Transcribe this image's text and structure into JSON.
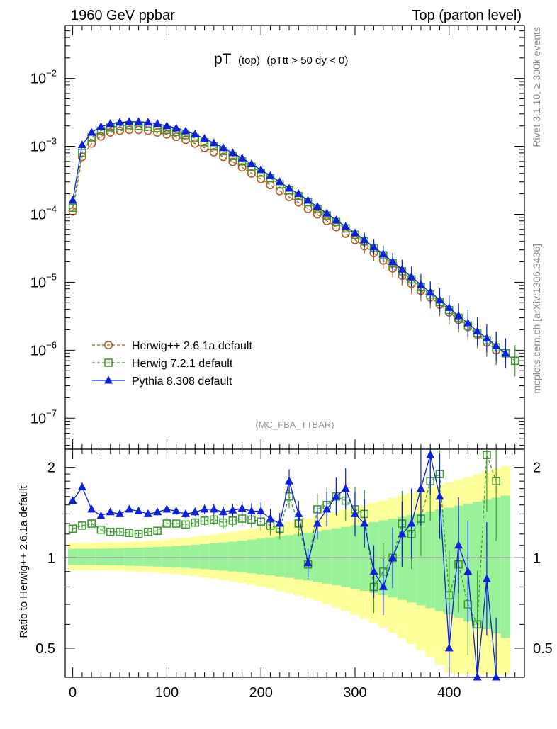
{
  "header": {
    "left": "1960 GeV ppbar",
    "right": "Top (parton level)"
  },
  "side_labels": {
    "rivet": "Rivet 3.1.10, ≥ 300k events",
    "mcplots": "mcplots.cern.ch [arXiv:1306.3436]"
  },
  "chart_data": [
    {
      "type": "line",
      "title": "pT (top) (pTtt > 50 dy < 0)",
      "title_main": "pT",
      "title_sub": "(top)",
      "title_cut": "(pTtt > 50 dy < 0)",
      "watermark": "(MC_FBA_TTBAR)",
      "yscale": "log",
      "ylim": [
        3.5e-08,
        0.06
      ],
      "xlim": [
        -8,
        480
      ],
      "ytick_labels": [
        {
          "mant": "10",
          "exp": "−2"
        },
        {
          "mant": "10",
          "exp": "−3"
        },
        {
          "mant": "10",
          "exp": "−4"
        },
        {
          "mant": "10",
          "exp": "−5"
        },
        {
          "mant": "10",
          "exp": "−6"
        },
        {
          "mant": "10",
          "exp": "−7"
        }
      ],
      "ytick_values": [
        0.01,
        0.001,
        0.0001,
        1e-05,
        1e-06,
        1e-07
      ],
      "legend": [
        {
          "label": "Herwig++ 2.6.1a default",
          "color": "#b35a1f",
          "marker": "circle"
        },
        {
          "label": "Herwig 7.2.1 default",
          "color": "#3d9b2e",
          "marker": "square"
        },
        {
          "label": "Pythia 8.308 default",
          "color": "#0b1fdc",
          "marker": "triangle"
        }
      ],
      "series": [
        {
          "name": "Herwig++ 2.6.1a default",
          "x": [
            0,
            10,
            20,
            30,
            40,
            50,
            60,
            70,
            80,
            90,
            100,
            110,
            120,
            130,
            140,
            150,
            160,
            170,
            180,
            190,
            200,
            210,
            220,
            230,
            240,
            250,
            260,
            270,
            280,
            290,
            300,
            310,
            320,
            330,
            340,
            350,
            360,
            370,
            380,
            390,
            400,
            410,
            420,
            430,
            440,
            450
          ],
          "y": [
            0.00011,
            0.0007,
            0.0011,
            0.0014,
            0.0016,
            0.0017,
            0.00175,
            0.00175,
            0.0017,
            0.0016,
            0.0015,
            0.00138,
            0.00125,
            0.0011,
            0.00095,
            0.00082,
            0.0007,
            0.00059,
            0.00049,
            0.0004,
            0.00033,
            0.00027,
            0.00022,
            0.00018,
            0.00015,
            0.00012,
            0.0001,
            8e-05,
            6.5e-05,
            5.2e-05,
            4.2e-05,
            3.4e-05,
            2.7e-05,
            2.1e-05,
            1.6e-05,
            1.25e-05,
            9.5e-06,
            7.5e-06,
            6e-06,
            4.7e-06,
            3.6e-06,
            2.8e-06,
            2.2e-06,
            1.7e-06,
            1.3e-06,
            1e-06
          ]
        },
        {
          "name": "Herwig 7.2.1 default",
          "x": [
            0,
            10,
            20,
            30,
            40,
            50,
            60,
            70,
            80,
            90,
            100,
            110,
            120,
            130,
            140,
            150,
            160,
            170,
            180,
            190,
            200,
            210,
            220,
            230,
            240,
            250,
            260,
            270,
            280,
            290,
            300,
            310,
            320,
            330,
            340,
            350,
            360,
            370,
            380,
            390,
            400,
            410,
            420,
            430,
            440,
            450,
            460,
            470
          ],
          "y": [
            0.000125,
            0.0008,
            0.00135,
            0.0017,
            0.0019,
            0.002,
            0.00205,
            0.002,
            0.00195,
            0.00185,
            0.00175,
            0.00162,
            0.00147,
            0.00132,
            0.00115,
            0.001,
            0.00085,
            0.00072,
            0.0006,
            0.0005,
            0.00041,
            0.00034,
            0.000275,
            0.000225,
            0.000185,
            0.00015,
            0.00012,
            9.6e-05,
            7.7e-05,
            6.2e-05,
            5e-05,
            4e-05,
            3.2e-05,
            2.5e-05,
            1.9e-05,
            1.45e-05,
            1.1e-05,
            8.5e-06,
            6.6e-06,
            5.1e-06,
            3.9e-06,
            3e-06,
            2.3e-06,
            1.8e-06,
            1.4e-06,
            1.1e-06,
            9e-07,
            7e-07
          ]
        },
        {
          "name": "Pythia 8.308 default",
          "x": [
            0,
            10,
            20,
            30,
            40,
            50,
            60,
            70,
            80,
            90,
            100,
            110,
            120,
            130,
            140,
            150,
            160,
            170,
            180,
            190,
            200,
            210,
            220,
            230,
            240,
            250,
            260,
            270,
            280,
            290,
            300,
            310,
            320,
            330,
            340,
            350,
            360,
            370,
            380,
            390,
            400,
            410,
            420,
            430,
            440,
            450,
            460
          ],
          "y": [
            0.00016,
            0.00105,
            0.0016,
            0.00195,
            0.00215,
            0.00225,
            0.0023,
            0.0023,
            0.00225,
            0.00215,
            0.002,
            0.00185,
            0.00168,
            0.0015,
            0.0013,
            0.00112,
            0.00095,
            0.0008,
            0.00067,
            0.00055,
            0.00045,
            0.00037,
            0.0003,
            0.00024,
            0.0002,
            0.00016,
            0.00013,
            0.000103,
            8.2e-05,
            6.6e-05,
            5.3e-05,
            4.2e-05,
            3.3e-05,
            2.6e-05,
            2e-05,
            1.55e-05,
            1.2e-05,
            9.2e-06,
            7.1e-06,
            5.5e-06,
            4.2e-06,
            3.2e-06,
            2.5e-06,
            1.9e-06,
            1.5e-06,
            1.15e-06,
            9e-07
          ]
        }
      ]
    },
    {
      "type": "line",
      "title": "Ratio to Herwig++ 2.6.1a default",
      "ylabel": "Ratio to Herwig++ 2.6.1a default",
      "yscale": "log",
      "ylim": [
        0.4,
        2.3
      ],
      "xlim": [
        -8,
        480
      ],
      "reference_line": 1,
      "ytick_values": [
        2,
        1,
        0.5
      ],
      "ytick_labels_left": [
        "2",
        "1",
        "0.5"
      ],
      "ytick_labels_right": [
        "2",
        "1",
        "0.5"
      ],
      "xtick_values": [
        0,
        100,
        200,
        300,
        400
      ],
      "xtick_labels": [
        "0",
        "100",
        "200",
        "300",
        "400"
      ],
      "series": [
        {
          "name": "Herwig 7.2.1 default",
          "x": [
            0,
            10,
            20,
            30,
            40,
            50,
            60,
            70,
            80,
            90,
            100,
            110,
            120,
            130,
            140,
            150,
            160,
            170,
            180,
            190,
            200,
            210,
            220,
            230,
            240,
            250,
            260,
            270,
            280,
            290,
            300,
            310,
            320,
            330,
            340,
            350,
            360,
            370,
            380,
            390,
            400,
            410,
            420,
            430,
            440,
            450
          ],
          "y": [
            1.25,
            1.28,
            1.3,
            1.24,
            1.22,
            1.22,
            1.21,
            1.2,
            1.22,
            1.23,
            1.3,
            1.3,
            1.29,
            1.31,
            1.33,
            1.34,
            1.31,
            1.33,
            1.35,
            1.34,
            1.32,
            1.28,
            1.25,
            1.6,
            1.3,
            0.95,
            1.45,
            1.5,
            1.6,
            1.55,
            1.45,
            1.4,
            0.8,
            0.9,
            1.0,
            1.3,
            1.2,
            1.35,
            1.8,
            1.9,
            0.75,
            0.95,
            0.7,
            0.6,
            2.2,
            1.8
          ]
        },
        {
          "name": "Pythia 8.308 default",
          "x": [
            0,
            10,
            20,
            30,
            40,
            50,
            60,
            70,
            80,
            90,
            100,
            110,
            120,
            130,
            140,
            150,
            160,
            170,
            180,
            190,
            200,
            210,
            220,
            230,
            240,
            250,
            260,
            270,
            280,
            290,
            300,
            310,
            320,
            330,
            340,
            350,
            360,
            370,
            380,
            390,
            400,
            410,
            420,
            430,
            440,
            450
          ],
          "y": [
            1.55,
            1.72,
            1.45,
            1.38,
            1.42,
            1.4,
            1.45,
            1.43,
            1.4,
            1.42,
            1.45,
            1.43,
            1.4,
            1.42,
            1.45,
            1.45,
            1.42,
            1.44,
            1.46,
            1.43,
            1.43,
            1.35,
            1.3,
            1.8,
            1.4,
            0.96,
            1.3,
            1.45,
            1.6,
            1.7,
            1.4,
            1.3,
            0.9,
            0.8,
            1.0,
            1.2,
            1.3,
            1.7,
            2.2,
            1.6,
            0.5,
            1.1,
            0.9,
            0.4,
            0.85,
            0.4
          ]
        }
      ]
    }
  ]
}
